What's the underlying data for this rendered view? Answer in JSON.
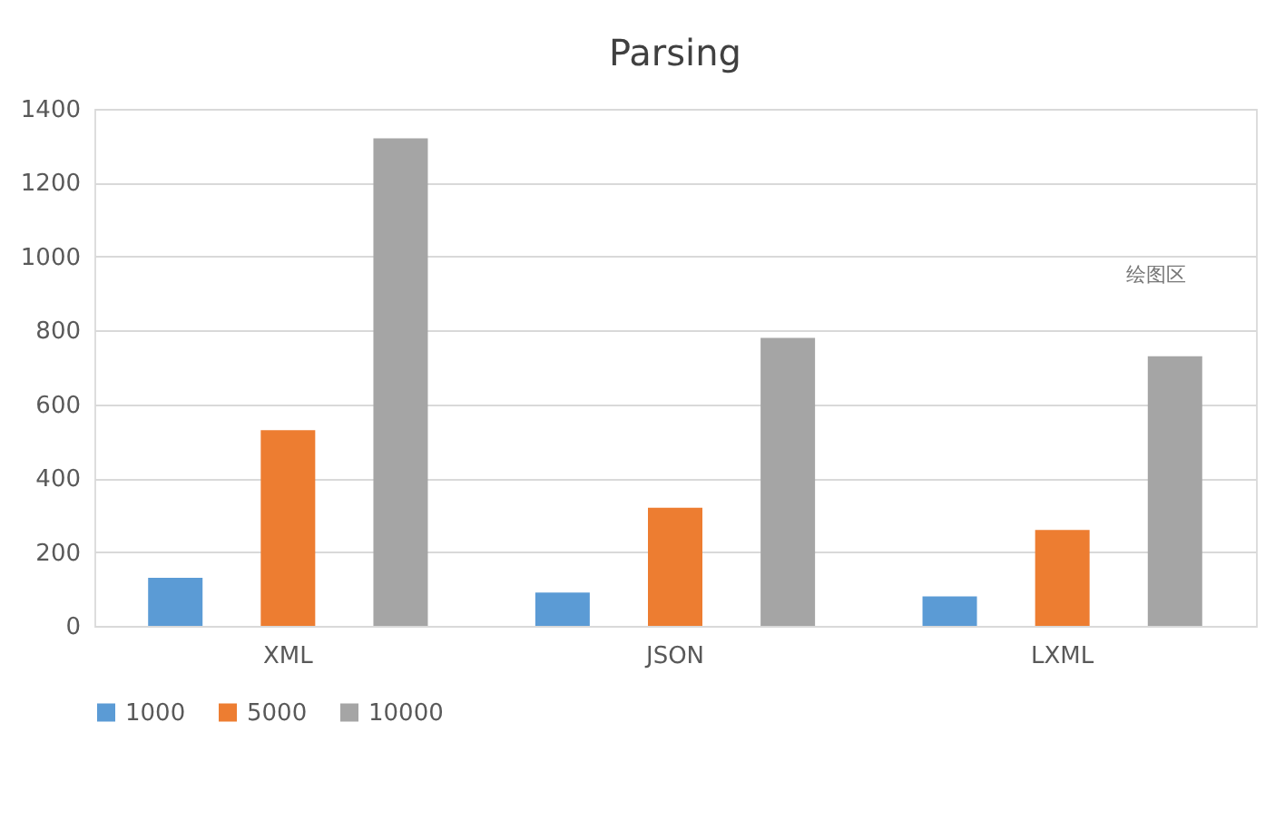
{
  "chart_data": {
    "type": "bar",
    "title": "Parsing",
    "categories": [
      "XML",
      "JSON",
      "LXML"
    ],
    "series": [
      {
        "name": "1000",
        "color": "#5b9bd5",
        "values": [
          130,
          90,
          80
        ]
      },
      {
        "name": "5000",
        "color": "#ed7d31",
        "values": [
          530,
          320,
          260
        ]
      },
      {
        "name": "10000",
        "color": "#a5a5a5",
        "values": [
          1320,
          780,
          730
        ]
      }
    ],
    "ylim": [
      0,
      1400
    ],
    "yticks": [
      0,
      200,
      400,
      600,
      800,
      1000,
      1200,
      1400
    ],
    "grid": "y",
    "legend": "bottom",
    "annotations": [
      "绘图区"
    ]
  }
}
